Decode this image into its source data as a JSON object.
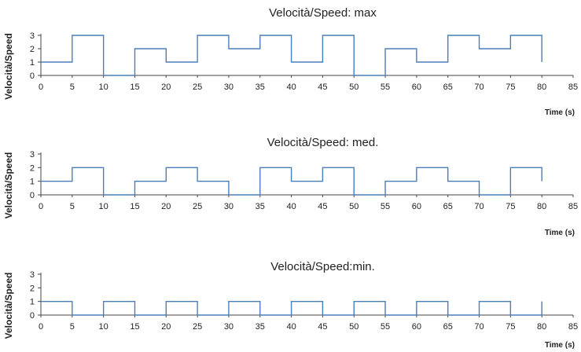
{
  "colors": {
    "series": "#4a7ebb",
    "axis": "#444444"
  },
  "chart_data": [
    {
      "type": "line",
      "step": "post",
      "title": "Velocità/Speed: max",
      "xlabel": "Time (s)",
      "ylabel": "Velocità/Speed",
      "xlim": [
        0,
        85
      ],
      "ylim": [
        0,
        3
      ],
      "x_ticks": [
        "0",
        "5",
        "10",
        "15",
        "20",
        "25",
        "30",
        "35",
        "40",
        "45",
        "50",
        "55",
        "60",
        "65",
        "70",
        "75",
        "80",
        "85"
      ],
      "y_ticks": [
        "0",
        "1",
        "2",
        "3"
      ],
      "series": [
        {
          "x": [
            0,
            5,
            10,
            15,
            20,
            25,
            30,
            35,
            40,
            45,
            50,
            55,
            60,
            65,
            70,
            75,
            80
          ],
          "values": [
            1,
            3,
            0,
            2,
            1,
            3,
            2,
            3,
            1,
            3,
            0,
            2,
            1,
            3,
            2,
            3,
            1
          ]
        }
      ]
    },
    {
      "type": "line",
      "step": "post",
      "title": "Velocità/Speed: med.",
      "xlabel": "Time (s)",
      "ylabel": "Velocità/Speed",
      "xlim": [
        0,
        85
      ],
      "ylim": [
        0,
        3
      ],
      "x_ticks": [
        "0",
        "5",
        "10",
        "15",
        "20",
        "25",
        "30",
        "35",
        "40",
        "45",
        "50",
        "55",
        "60",
        "65",
        "70",
        "75",
        "80",
        "85"
      ],
      "y_ticks": [
        "0",
        "1",
        "2",
        "3"
      ],
      "series": [
        {
          "x": [
            0,
            5,
            10,
            15,
            20,
            25,
            30,
            35,
            40,
            45,
            50,
            55,
            60,
            65,
            70,
            75,
            80
          ],
          "values": [
            1,
            2,
            0,
            1,
            2,
            1,
            0,
            2,
            1,
            2,
            0,
            1,
            2,
            1,
            0,
            2,
            1
          ]
        }
      ]
    },
    {
      "type": "line",
      "step": "post",
      "title": "Velocità/Speed:min.",
      "xlabel": "Time (s)",
      "ylabel": "Velocità/Speed",
      "xlim": [
        0,
        85
      ],
      "ylim": [
        0,
        3
      ],
      "x_ticks": [
        "0",
        "5",
        "10",
        "15",
        "20",
        "25",
        "30",
        "35",
        "40",
        "45",
        "50",
        "55",
        "60",
        "65",
        "70",
        "75",
        "80",
        "85"
      ],
      "y_ticks": [
        "0",
        "1",
        "2",
        "3"
      ],
      "series": [
        {
          "x": [
            0,
            5,
            10,
            15,
            20,
            25,
            30,
            35,
            40,
            45,
            50,
            55,
            60,
            65,
            70,
            75,
            80
          ],
          "values": [
            1,
            0,
            1,
            0,
            1,
            0,
            1,
            0,
            1,
            0,
            1,
            0,
            1,
            0,
            1,
            0,
            1
          ]
        }
      ]
    }
  ]
}
